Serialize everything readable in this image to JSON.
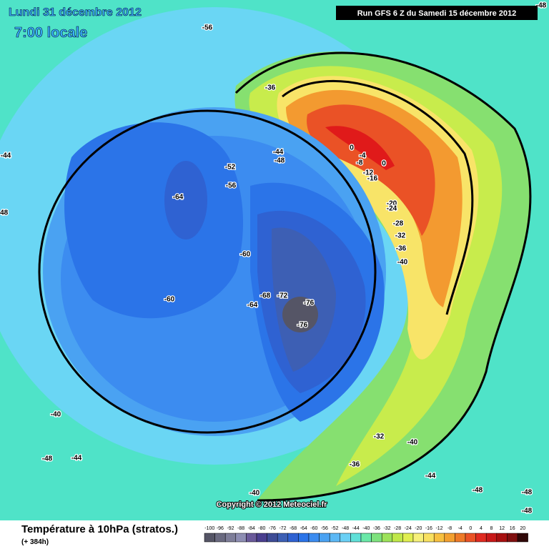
{
  "header": {
    "date": "Lundi 31 décembre 2012",
    "time": "7:00 locale",
    "run": "Run GFS 6 Z du Samedi 15 décembre 2012"
  },
  "copyright": "Copyright © 2012 Meteociel.fr",
  "footer": {
    "title": "Température à 10hPa (stratos.)",
    "subtitle": "(+ 384h)"
  },
  "contour_labels": [
    "-56",
    "-36",
    "-44",
    "-48",
    "-52",
    "-44",
    "-48",
    "-56",
    "-64",
    "-60",
    "-60",
    "-68",
    "-72",
    "-76",
    "-64",
    "-76",
    "0",
    "-4",
    "-8",
    "0",
    "-12",
    "-16",
    "-20",
    "-24",
    "-28",
    "-32",
    "-36",
    "-40",
    "-40",
    "-32",
    "-40",
    "-36",
    "-44",
    "-48",
    "-48",
    "-48",
    "-48",
    "-44",
    "-40",
    "-48"
  ],
  "legend": {
    "labels": [
      -100,
      -96,
      -92,
      -88,
      -84,
      -80,
      -76,
      -72,
      -68,
      -64,
      -60,
      -56,
      -52,
      -48,
      -44,
      -40,
      -36,
      -32,
      -28,
      -24,
      -20,
      -16,
      -12,
      -8,
      -4,
      0,
      4,
      8,
      12,
      16,
      20
    ],
    "colors": [
      "#555566",
      "#6a6a80",
      "#7e7e99",
      "#8e8eb3",
      "#6a5a9a",
      "#4a3f8f",
      "#3e4c96",
      "#3d5fb4",
      "#2f62d2",
      "#2b74e8",
      "#3c8cf0",
      "#4aa2f2",
      "#5cb8f5",
      "#6ad0f5",
      "#60e0d8",
      "#6ae8a8",
      "#7ee27e",
      "#9de25a",
      "#c0e84a",
      "#e0ee50",
      "#f6f07a",
      "#f8e060",
      "#f7c040",
      "#f3a030",
      "#ee7a28",
      "#ea5226",
      "#e02a20",
      "#c81818",
      "#a81010",
      "#801010",
      "#300808"
    ]
  }
}
